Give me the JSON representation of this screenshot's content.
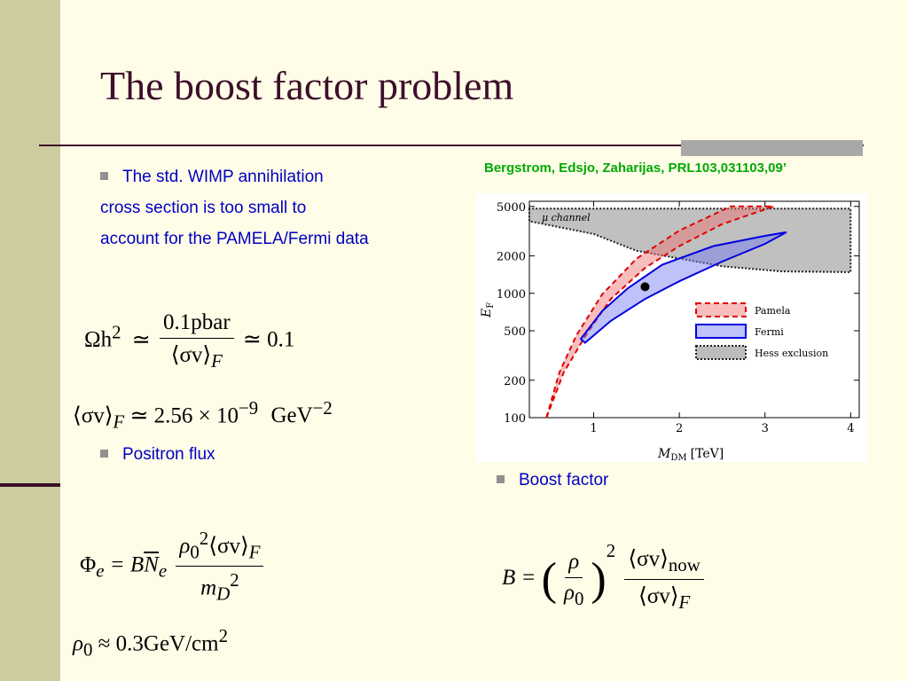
{
  "title": "The boost factor problem",
  "colors": {
    "sidebar": "#cdcc9e",
    "title": "#3d0f2a",
    "bullet_text": "#0000c0",
    "citation": "#00aa00",
    "pamela": "#e00000",
    "fermi": "#0000e0",
    "hess": "#555555"
  },
  "bullets": {
    "b1_line1": "The std. WIMP annihilation",
    "b1_line2": "cross section is too small to",
    "b1_line3": "account for the  PAMELA/Fermi data",
    "b2": "Positron flux",
    "b3": "Boost factor"
  },
  "citation": "Bergstrom, Edsjo, Zaharijas, PRL103,031103,09’",
  "equations": {
    "omega_lhs": "Ωh",
    "omega_exp": "2",
    "omega_num": "0.1pbar",
    "omega_den": "⟨σv⟩",
    "omega_den_sub": "F",
    "omega_rhs": "≃ 0.1",
    "sv_lhs": "⟨σv⟩",
    "sv_sub": "F",
    "sv_rhs": "≃ 2.56 × 10",
    "sv_exp": "−9",
    "sv_unit": "GeV",
    "sv_unit_exp": "−2",
    "phi_lhs": "Φ",
    "phi_sub": "e",
    "phi_mid": "= B",
    "phi_n": "N",
    "phi_n_sub": "e",
    "phi_num_rho": "ρ",
    "phi_num_rho_sub": "0",
    "phi_num_rho_exp": "2",
    "phi_num_sv": "⟨σv⟩",
    "phi_num_sv_sub": "F",
    "phi_den_m": "m",
    "phi_den_sub": "D",
    "phi_den_exp": "2",
    "rho_lhs": "ρ",
    "rho_sub": "0",
    "rho_rhs": "≈ 0.3GeV/cm",
    "rho_exp": "2",
    "boost_lhs": "B =",
    "boost_num_rho": "ρ",
    "boost_den_rho": "ρ",
    "boost_den_rho_sub": "0",
    "boost_exp": "2",
    "boost_num_sv": "⟨σv⟩",
    "boost_num_sub": "now",
    "boost_den_sv": "⟨σv⟩",
    "boost_den_sub": "F"
  },
  "chart_data": {
    "type": "area",
    "xlabel_main": "M",
    "xlabel_sub": "DM",
    "xlabel_unit": "[TeV]",
    "ylabel_main": "E",
    "ylabel_sub": "F",
    "yscale": "log",
    "xlim": [
      0.25,
      4.1
    ],
    "ylim": [
      100,
      5500
    ],
    "x_ticks": [
      1,
      2,
      3,
      4
    ],
    "y_ticks": [
      100,
      200,
      500,
      1000,
      2000,
      5000
    ],
    "channel_label": "μ channel",
    "regions": [
      {
        "name": "Hess exclusion",
        "color": "#555555",
        "points": [
          [
            0.25,
            4800
          ],
          [
            0.25,
            3800
          ],
          [
            1.0,
            3000
          ],
          [
            1.5,
            2200
          ],
          [
            2.5,
            1650
          ],
          [
            3.2,
            1500
          ],
          [
            4.0,
            1480
          ],
          [
            4.0,
            4800
          ]
        ]
      },
      {
        "name": "Pamela",
        "color": "#e00000",
        "points": [
          [
            0.45,
            100
          ],
          [
            0.65,
            230
          ],
          [
            0.9,
            450
          ],
          [
            1.2,
            900
          ],
          [
            1.6,
            1600
          ],
          [
            2.0,
            2400
          ],
          [
            2.5,
            3600
          ],
          [
            3.1,
            5000
          ],
          [
            2.6,
            5000
          ],
          [
            2.0,
            3200
          ],
          [
            1.5,
            1900
          ],
          [
            1.1,
            980
          ],
          [
            0.8,
            460
          ],
          [
            0.6,
            230
          ],
          [
            0.45,
            100
          ]
        ]
      },
      {
        "name": "Fermi",
        "color": "#0000e0",
        "points": [
          [
            0.85,
            430
          ],
          [
            1.1,
            720
          ],
          [
            1.4,
            1100
          ],
          [
            1.8,
            1700
          ],
          [
            2.4,
            2400
          ],
          [
            3.0,
            2900
          ],
          [
            3.25,
            3100
          ],
          [
            3.0,
            2500
          ],
          [
            2.5,
            1800
          ],
          [
            2.0,
            1250
          ],
          [
            1.6,
            900
          ],
          [
            1.2,
            600
          ],
          [
            0.9,
            400
          ],
          [
            0.85,
            430
          ]
        ]
      }
    ],
    "marker": {
      "x": 1.6,
      "y": 1130
    },
    "legend": [
      "Pamela",
      "Fermi",
      "Hess exclusion"
    ]
  }
}
